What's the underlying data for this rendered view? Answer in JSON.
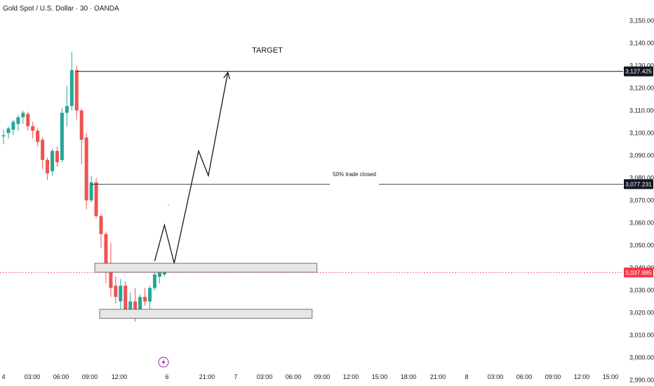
{
  "header": {
    "title": "Gold Spot / U.S. Dollar · 30 · OANDA"
  },
  "annotations": {
    "target": "TARGET",
    "half_close": "50% trade closed"
  },
  "colors": {
    "up": "#26a69a",
    "down": "#ef5350",
    "current": "#f23645",
    "zone_fill": "#e6e6e6",
    "zone_stroke": "#555555",
    "line": "#131722",
    "event": "#9c27b0"
  },
  "chart_data": {
    "type": "candlestick",
    "title": "Gold Spot / U.S. Dollar · 30 · OANDA",
    "y_ticks": [
      "3,150.000",
      "3,140.000",
      "3,130.000",
      "3,120.000",
      "3,110.000",
      "3,100.000",
      "3,090.000",
      "3,080.000",
      "3,070.000",
      "3,060.000",
      "3,050.000",
      "3,040.000",
      "3,030.000",
      "3,020.000",
      "3,010.000",
      "3,000.000",
      "2,990.000"
    ],
    "y_tick_values": [
      3150,
      3140,
      3130,
      3120,
      3110,
      3100,
      3090,
      3080,
      3070,
      3060,
      3050,
      3040,
      3030,
      3020,
      3010,
      3000,
      2990
    ],
    "ylim": [
      2985,
      3155
    ],
    "x_ticks": [
      "4",
      "03:00",
      "06:00",
      "09:00",
      "12:00",
      "6",
      "21:00",
      "7",
      "03:00",
      "06:00",
      "09:00",
      "12:00",
      "15:00",
      "18:00",
      "21:00",
      "8",
      "03:00",
      "06:00",
      "09:00",
      "12:00",
      "15:00"
    ],
    "x_tick_index": [
      0,
      6,
      12,
      18,
      24,
      34,
      42,
      48,
      54,
      60,
      66,
      72,
      78,
      84,
      90,
      96,
      102,
      108,
      114,
      120,
      126
    ],
    "candles": [
      {
        "o": 3098.5,
        "h": 3101.5,
        "l": 3095,
        "c": 3099
      },
      {
        "o": 3100,
        "h": 3103,
        "l": 3097.5,
        "c": 3102
      },
      {
        "o": 3101.5,
        "h": 3106,
        "l": 3099,
        "c": 3105
      },
      {
        "o": 3104,
        "h": 3108,
        "l": 3101,
        "c": 3107
      },
      {
        "o": 3107,
        "h": 3110,
        "l": 3104,
        "c": 3109
      },
      {
        "o": 3108.5,
        "h": 3109.5,
        "l": 3101,
        "c": 3103
      },
      {
        "o": 3103,
        "h": 3105,
        "l": 3097.5,
        "c": 3101
      },
      {
        "o": 3101,
        "h": 3102,
        "l": 3094,
        "c": 3096
      },
      {
        "o": 3097,
        "h": 3098,
        "l": 3084,
        "c": 3088
      },
      {
        "o": 3088,
        "h": 3089,
        "l": 3079,
        "c": 3082
      },
      {
        "o": 3083,
        "h": 3093,
        "l": 3081,
        "c": 3092
      },
      {
        "o": 3092,
        "h": 3094,
        "l": 3085,
        "c": 3087
      },
      {
        "o": 3088,
        "h": 3111,
        "l": 3087,
        "c": 3109
      },
      {
        "o": 3109,
        "h": 3121,
        "l": 3103,
        "c": 3112
      },
      {
        "o": 3112,
        "h": 3136,
        "l": 3110,
        "c": 3128
      },
      {
        "o": 3128,
        "h": 3130,
        "l": 3106,
        "c": 3110
      },
      {
        "o": 3110,
        "h": 3111,
        "l": 3086,
        "c": 3097
      },
      {
        "o": 3098,
        "h": 3100,
        "l": 3066,
        "c": 3070
      },
      {
        "o": 3070,
        "h": 3081,
        "l": 3069,
        "c": 3078
      },
      {
        "o": 3078,
        "h": 3080,
        "l": 3062,
        "c": 3063
      },
      {
        "o": 3063,
        "h": 3064,
        "l": 3049,
        "c": 3055
      },
      {
        "o": 3055,
        "h": 3056,
        "l": 3033,
        "c": 3042
      },
      {
        "o": 3042,
        "h": 3051,
        "l": 3027,
        "c": 3031
      },
      {
        "o": 3032,
        "h": 3036,
        "l": 3024,
        "c": 3027
      },
      {
        "o": 3025,
        "h": 3035,
        "l": 3018,
        "c": 3032
      },
      {
        "o": 3032,
        "h": 3034,
        "l": 3019,
        "c": 3021
      },
      {
        "o": 3021,
        "h": 3029,
        "l": 3018,
        "c": 3025
      },
      {
        "o": 3025,
        "h": 3031,
        "l": 3016,
        "c": 3020
      },
      {
        "o": 3021,
        "h": 3028,
        "l": 3018,
        "c": 3027
      },
      {
        "o": 3027,
        "h": 3031,
        "l": 3023,
        "c": 3025
      },
      {
        "o": 3025,
        "h": 3032,
        "l": 3020,
        "c": 3031
      },
      {
        "o": 3031,
        "h": 3038,
        "l": 3030,
        "c": 3037
      },
      {
        "o": 3036,
        "h": 3041,
        "l": 3033,
        "c": 3039
      },
      {
        "o": 3037,
        "h": 3040,
        "l": 3036,
        "c": 3038
      }
    ],
    "levels": [
      {
        "label": "3,127.425",
        "value": 3127.425,
        "kind": "target"
      },
      {
        "label": "3,077.231",
        "value": 3077.231,
        "kind": "half"
      },
      {
        "label": "3,037.885",
        "value": 3037.885,
        "kind": "current"
      }
    ],
    "zones": [
      {
        "from_index": 19,
        "to_index": 64,
        "low": 3038,
        "high": 3042
      },
      {
        "from_index": 20,
        "to_index": 63,
        "low": 3017.5,
        "high": 3021.5
      }
    ],
    "projected_path": [
      {
        "i": 31,
        "v": 3043
      },
      {
        "i": 33,
        "v": 3059
      },
      {
        "i": 35,
        "v": 3042
      },
      {
        "i": 40,
        "v": 3092
      },
      {
        "i": 42,
        "v": 3081
      },
      {
        "i": 46,
        "v": 3127
      }
    ],
    "line_starts": {
      "target": 15,
      "half": 18
    },
    "event_marker": {
      "index": 32,
      "icon": "lightning-icon"
    },
    "grid": false
  }
}
